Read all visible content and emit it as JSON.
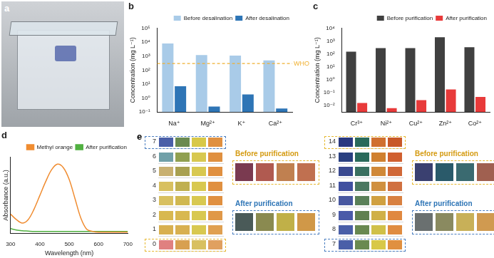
{
  "chart_data": [
    {
      "type": "bar",
      "title": "b",
      "categories": [
        "Na⁺",
        "Mg²⁺",
        "K⁺",
        "Ca²⁺"
      ],
      "y_label": "Concentration (mg L⁻¹)",
      "series": [
        {
          "name": "Before desalination",
          "color": "#a9cbe8",
          "values": [
            8000,
            1200,
            1100,
            500
          ]
        },
        {
          "name": "After desalination",
          "color": "#2e75b6",
          "values": [
            7,
            0.25,
            1.8,
            0.18
          ]
        }
      ],
      "log": "y",
      "ylim": [
        0.1,
        100000
      ],
      "yticks": [
        {
          "value": 0.1,
          "label": "10⁻¹"
        },
        {
          "value": 1,
          "label": "10⁰"
        },
        {
          "value": 10,
          "label": "10¹"
        },
        {
          "value": 100,
          "label": "10²"
        },
        {
          "value": 1000,
          "label": "10³"
        },
        {
          "value": 10000,
          "label": "10⁴"
        },
        {
          "value": 100000,
          "label": "10⁵"
        }
      ],
      "grid": false,
      "legend": "upper right",
      "annotations": [
        {
          "text": "WHO",
          "y": 300,
          "color": "#f0b030"
        }
      ]
    },
    {
      "type": "bar",
      "title": "c",
      "categories": [
        "Cr³⁺",
        "Ni²⁺",
        "Cu²⁺",
        "Zn²⁺",
        "Co²⁺"
      ],
      "y_label": "Concentration (mg L⁻¹)",
      "series": [
        {
          "name": "Before purification",
          "color": "#404040",
          "values": [
            150,
            280,
            280,
            2000,
            330
          ]
        },
        {
          "name": "After purification",
          "color": "#e83a3a",
          "values": [
            0.015,
            0.006,
            0.025,
            0.17,
            0.045
          ]
        }
      ],
      "log": "y",
      "ylim": [
        0.003,
        10000
      ],
      "yticks": [
        {
          "value": 0.01,
          "label": "10⁻²"
        },
        {
          "value": 0.1,
          "label": "10⁻¹"
        },
        {
          "value": 1,
          "label": "10⁰"
        },
        {
          "value": 10,
          "label": "10¹"
        },
        {
          "value": 100,
          "label": "10²"
        },
        {
          "value": 1000,
          "label": "10³"
        },
        {
          "value": 10000,
          "label": "10⁴"
        }
      ],
      "grid": false,
      "legend": "upper right"
    },
    {
      "type": "line",
      "title": "d",
      "x": [
        300,
        320,
        340,
        360,
        380,
        400,
        420,
        440,
        460,
        480,
        500,
        520,
        540,
        560,
        580,
        600,
        650,
        700
      ],
      "x_label": "Wavelength (nm)",
      "y_label": "Absorbance (a.u.)",
      "series": [
        {
          "name": "Methyl orange",
          "color": "#f08c30",
          "values": [
            0.28,
            0.2,
            0.15,
            0.2,
            0.35,
            0.55,
            0.75,
            0.92,
            1.0,
            0.95,
            0.78,
            0.5,
            0.22,
            0.06,
            0.03,
            0.02,
            0.02,
            0.02
          ]
        },
        {
          "name": "After purification",
          "color": "#50b040",
          "values": [
            0.07,
            0.05,
            0.04,
            0.035,
            0.03,
            0.03,
            0.03,
            0.03,
            0.03,
            0.03,
            0.03,
            0.03,
            0.03,
            0.03,
            0.03,
            0.03,
            0.03,
            0.03
          ]
        }
      ],
      "xlim": [
        300,
        700
      ],
      "xticks": [
        300,
        400,
        500,
        600,
        700
      ],
      "ylim": [
        0,
        1.1
      ],
      "tick_labels": "x",
      "grid": false,
      "legend": "upper right"
    }
  ],
  "panel_a": {
    "title": "a"
  },
  "panel_e": {
    "title": "e",
    "groups": [
      {
        "rows": [
          {
            "label": "7",
            "colors": [
              "#4a5fa8",
              "#6a8a50",
              "#d8c848",
              "#e09040"
            ]
          },
          {
            "label": "6",
            "colors": [
              "#70a0a8",
              "#90a050",
              "#d8c850",
              "#e09040"
            ]
          },
          {
            "label": "5",
            "colors": [
              "#c8b070",
              "#a8a050",
              "#d8c850",
              "#e09040"
            ]
          },
          {
            "label": "4",
            "colors": [
              "#d8c060",
              "#c0b050",
              "#d8c850",
              "#e09040"
            ]
          },
          {
            "label": "3",
            "colors": [
              "#d8c060",
              "#d0b850",
              "#d8c850",
              "#e09040"
            ]
          },
          {
            "label": "2",
            "colors": [
              "#d8b850",
              "#d8b850",
              "#d8c850",
              "#e09848"
            ]
          },
          {
            "label": "1",
            "colors": [
              "#d8b050",
              "#d8b050",
              "#d8c850",
              "#e0a050"
            ]
          },
          {
            "label": "0",
            "colors": [
              "#e08080",
              "#d8a050",
              "#d8c060",
              "#e0a060"
            ]
          }
        ],
        "samples": [
          {
            "label": "Before purification",
            "colors": [
              "#7a3a50",
              "#b05a50",
              "#c08050",
              "#c07050"
            ]
          },
          {
            "label": "After purification",
            "colors": [
              "#4a5a58",
              "#8a8a50",
              "#c0b048",
              "#d09848"
            ]
          }
        ]
      },
      {
        "rows": [
          {
            "label": "14",
            "colors": [
              "#2a3880",
              "#2a6a5a",
              "#d07030",
              "#c85828"
            ]
          },
          {
            "label": "13",
            "colors": [
              "#2a4080",
              "#2a6a5a",
              "#d08030",
              "#d06030"
            ]
          },
          {
            "label": "12",
            "colors": [
              "#3a4a90",
              "#3a7060",
              "#d08838",
              "#d06838"
            ]
          },
          {
            "label": "11",
            "colors": [
              "#4050a0",
              "#4a7860",
              "#d09040",
              "#d07040"
            ]
          },
          {
            "label": "10",
            "colors": [
              "#4858a0",
              "#5a8058",
              "#d0a040",
              "#d88040"
            ]
          },
          {
            "label": "9",
            "colors": [
              "#4a5aa8",
              "#608050",
              "#d0b048",
              "#e08840"
            ]
          },
          {
            "label": "8",
            "colors": [
              "#4a5fa8",
              "#688850",
              "#d0c048",
              "#e08c40"
            ]
          },
          {
            "label": "7",
            "colors": [
              "#4a5fa8",
              "#6a8a50",
              "#d8c848",
              "#e09040"
            ]
          }
        ],
        "samples": [
          {
            "label": "Before purification",
            "colors": [
              "#3a4070",
              "#2a5a6a",
              "#3a6a70",
              "#a06050"
            ]
          },
          {
            "label": "After purification",
            "colors": [
              "#6a7070",
              "#8a8a60",
              "#c8b058",
              "#d09a50"
            ]
          }
        ]
      }
    ]
  }
}
